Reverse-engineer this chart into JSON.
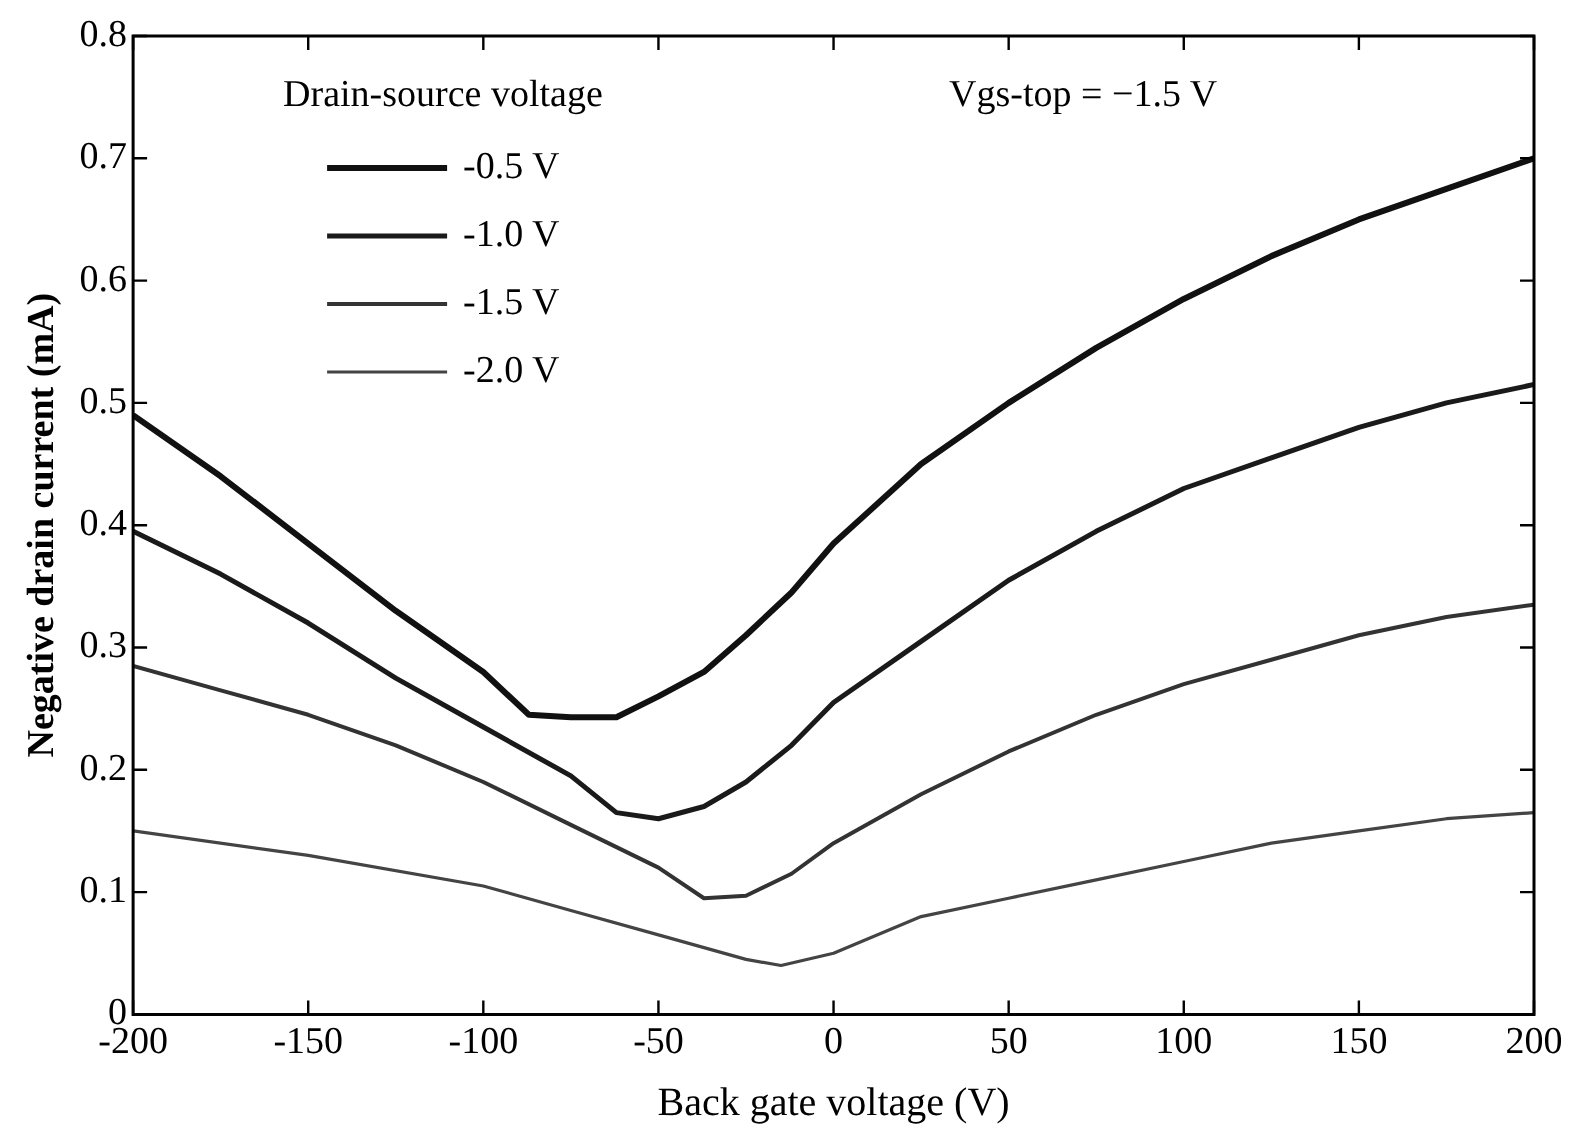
{
  "chart_data": {
    "type": "line",
    "xlabel": "Back gate voltage (V)",
    "ylabel": "Negative drain current (mA)",
    "legend_title": "Drain-source voltage",
    "annotations": [
      "Vgs-top = −1.5 V"
    ],
    "xlim": [
      -200,
      200
    ],
    "xticks": [
      -200,
      -150,
      -100,
      -50,
      0,
      50,
      100,
      150,
      200
    ],
    "ylim": [
      0,
      0.8
    ],
    "yticks": [
      0,
      0.1,
      0.2,
      0.3,
      0.4,
      0.5,
      0.6,
      0.7,
      0.8
    ],
    "grid": false,
    "legend": "top left",
    "marker": "none",
    "line_style": "solid",
    "series": [
      {
        "name": "-0.5 V",
        "color": "#111111",
        "x": [
          -200,
          -175,
          -150,
          -125,
          -100,
          -87,
          -75,
          -62,
          -50,
          -37,
          -25,
          -12,
          0,
          25,
          50,
          75,
          100,
          125,
          150,
          175,
          200
        ],
        "values": [
          0.49,
          0.44,
          0.385,
          0.33,
          0.28,
          0.245,
          0.243,
          0.243,
          0.26,
          0.28,
          0.31,
          0.345,
          0.385,
          0.45,
          0.5,
          0.545,
          0.585,
          0.62,
          0.65,
          0.675,
          0.7
        ]
      },
      {
        "name": "-1.0 V",
        "color": "#1a1a1a",
        "x": [
          -200,
          -175,
          -150,
          -125,
          -100,
          -75,
          -62,
          -50,
          -37,
          -25,
          -12,
          0,
          25,
          50,
          75,
          100,
          125,
          150,
          175,
          200
        ],
        "values": [
          0.395,
          0.36,
          0.32,
          0.275,
          0.235,
          0.195,
          0.165,
          0.16,
          0.17,
          0.19,
          0.22,
          0.255,
          0.305,
          0.355,
          0.395,
          0.43,
          0.455,
          0.48,
          0.5,
          0.515
        ]
      },
      {
        "name": "-1.5 V",
        "color": "#333333",
        "x": [
          -200,
          -175,
          -150,
          -125,
          -100,
          -75,
          -50,
          -37,
          -25,
          -12,
          0,
          25,
          50,
          75,
          100,
          125,
          150,
          175,
          200
        ],
        "values": [
          0.285,
          0.265,
          0.245,
          0.22,
          0.19,
          0.155,
          0.12,
          0.095,
          0.097,
          0.115,
          0.14,
          0.18,
          0.215,
          0.245,
          0.27,
          0.29,
          0.31,
          0.325,
          0.335
        ]
      },
      {
        "name": "-2.0 V",
        "color": "#444444",
        "x": [
          -200,
          -150,
          -100,
          -75,
          -50,
          -25,
          -15,
          0,
          25,
          50,
          75,
          100,
          125,
          150,
          175,
          200
        ],
        "values": [
          0.15,
          0.13,
          0.105,
          0.085,
          0.065,
          0.045,
          0.04,
          0.05,
          0.08,
          0.095,
          0.11,
          0.125,
          0.14,
          0.15,
          0.16,
          0.165
        ]
      }
    ]
  }
}
